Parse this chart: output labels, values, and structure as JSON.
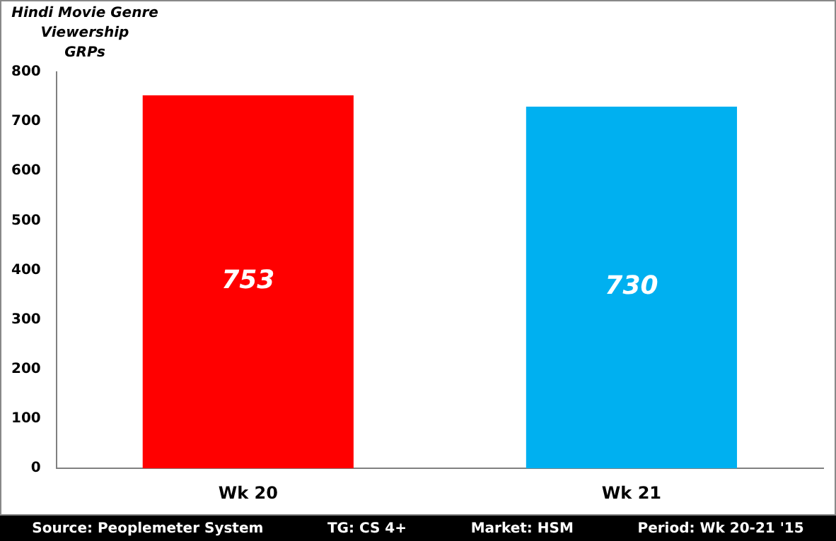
{
  "chart_data": {
    "type": "bar",
    "title": "Hindi Movie Genre\nViewership\nGRPs",
    "categories": [
      "Wk 20",
      "Wk 21"
    ],
    "values": [
      753,
      730
    ],
    "colors": [
      "#ff0000",
      "#00b0f0"
    ],
    "ylim": [
      0,
      800
    ],
    "yticks": [
      0,
      100,
      200,
      300,
      400,
      500,
      600,
      700,
      800
    ],
    "grid": false,
    "legend": false,
    "data_labels": true,
    "annotations": [
      "Source: Peoplemeter System",
      "TG: CS 4+",
      "Market: HSM",
      "Period: Wk 20-21 '15"
    ]
  }
}
